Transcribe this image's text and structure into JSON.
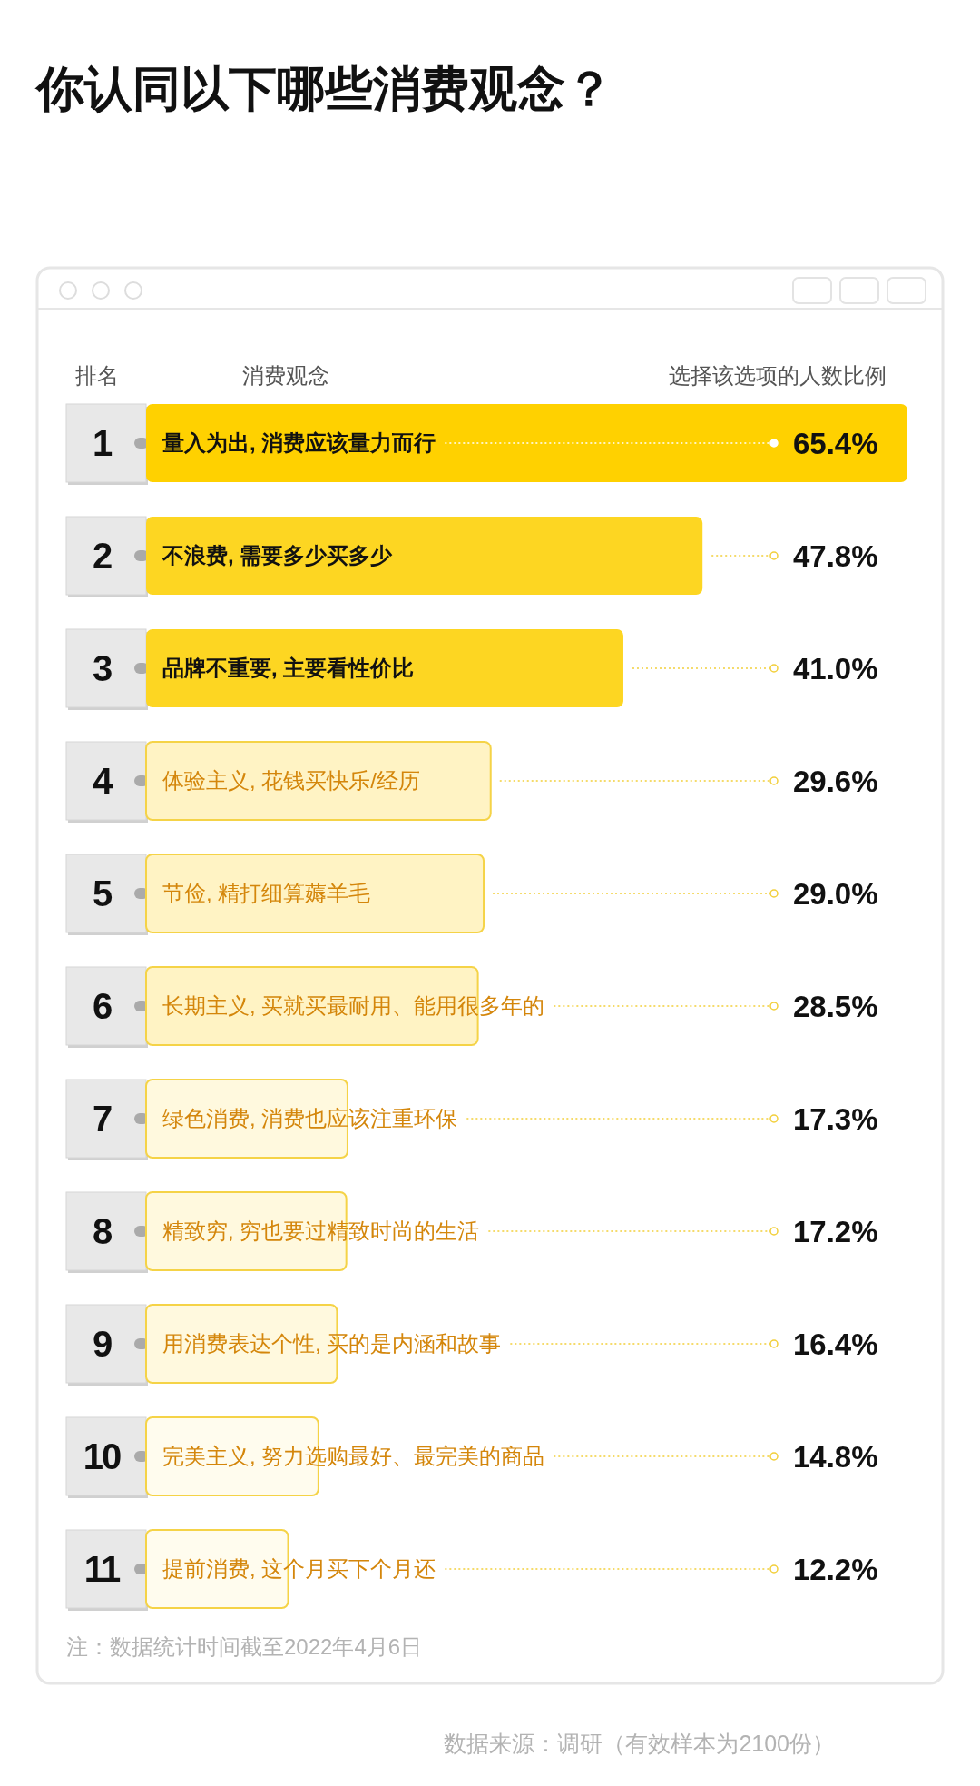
{
  "chart_data": {
    "type": "bar",
    "orientation": "horizontal",
    "title": "你认同以下哪些消费观念？",
    "y2label": "排名",
    "ylabel": "消费观念",
    "xlabel": "选择该选项的人数比例",
    "categories": [
      "量入为出, 消费应该量力而行",
      "不浪费, 需要多少买多少",
      "品牌不重要, 主要看性价比",
      "体验主义, 花钱买快乐/经历",
      "节俭, 精打细算薅羊毛",
      "长期主义, 买就买最耐用、能用很多年的",
      "绿色消费, 消费也应该注重环保",
      "精致穷, 穷也要过精致时尚的生活",
      "用消费表达个性, 买的是内涵和故事",
      "完美主义, 努力选购最好、最完美的商品",
      "提前消费, 这个月买下个月还"
    ],
    "y2_categories": [
      "1",
      "2",
      "3",
      "4",
      "5",
      "6",
      "7",
      "8",
      "9",
      "10",
      "11"
    ],
    "values": [
      65.4,
      47.8,
      41.0,
      29.6,
      29.0,
      28.5,
      17.3,
      17.2,
      16.4,
      14.8,
      12.2
    ],
    "value_labels": [
      "65.4%",
      "47.8%",
      "41.0%",
      "29.6%",
      "29.0%",
      "28.5%",
      "17.3%",
      "17.2%",
      "16.4%",
      "14.8%",
      "12.2%"
    ],
    "colors": [
      "#ffd100",
      "#fdd622",
      "#fdd622",
      "#fff3c4",
      "#fff3c4",
      "#fff3c4",
      "#fff9de",
      "#fff9de",
      "#fff9de",
      "#fffcee",
      "#fffcee"
    ],
    "annotations": [
      "注：数据统计时间截至2022年4月6日",
      "数据来源：调研（有效样本为2100份）"
    ]
  }
}
